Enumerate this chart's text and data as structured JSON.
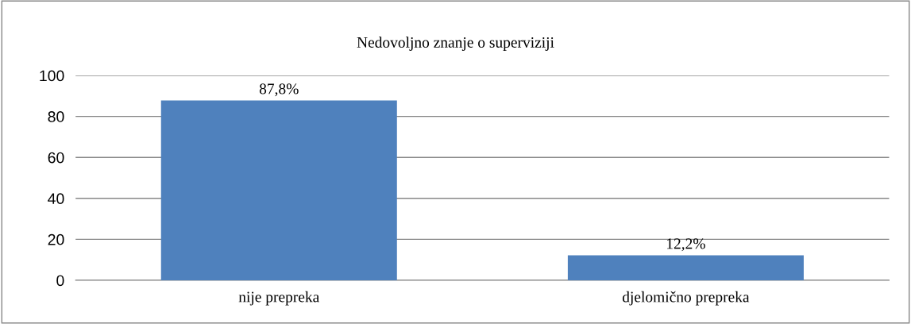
{
  "chart_data": {
    "type": "bar",
    "title": "Nedovoljno znanje o superviziji",
    "categories": [
      "nije prepreka",
      "djelomično prepreka"
    ],
    "values": [
      87.8,
      12.2
    ],
    "value_labels": [
      "87,8%",
      "12,2%"
    ],
    "color": "#4f81bd",
    "ylim": [
      0,
      100
    ],
    "yticks": [
      0,
      20,
      40,
      60,
      80,
      100
    ],
    "grid": "y",
    "legend": false
  }
}
